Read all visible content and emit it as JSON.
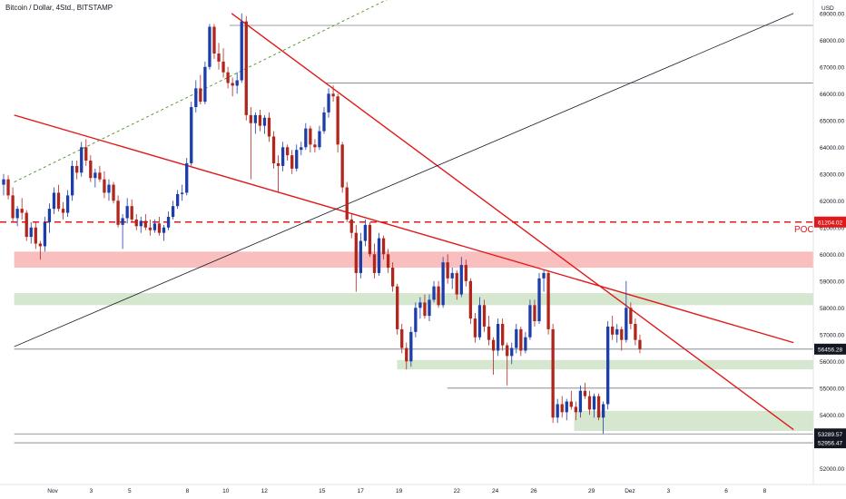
{
  "chart_data": {
    "type": "candlestick",
    "title": "Bitcoin / Dollar, 4Std., BITSTAMP",
    "currency": "USD",
    "ylim": [
      51400,
      69500
    ],
    "y_ticks": [
      52000,
      53000,
      54000,
      55000,
      56000,
      57000,
      58000,
      59000,
      60000,
      61000,
      62000,
      63000,
      64000,
      65000,
      66000,
      67000,
      68000,
      69000
    ],
    "x_ticks": [
      {
        "label": "Nov",
        "day": 1
      },
      {
        "label": "3",
        "day": 3
      },
      {
        "label": "5",
        "day": 5
      },
      {
        "label": "8",
        "day": 8
      },
      {
        "label": "10",
        "day": 10
      },
      {
        "label": "12",
        "day": 12
      },
      {
        "label": "15",
        "day": 15
      },
      {
        "label": "17",
        "day": 17
      },
      {
        "label": "19",
        "day": 19
      },
      {
        "label": "22",
        "day": 22
      },
      {
        "label": "24",
        "day": 24
      },
      {
        "label": "26",
        "day": 26
      },
      {
        "label": "29",
        "day": 29
      },
      {
        "label": "Dez",
        "day": 31
      },
      {
        "label": "3",
        "day": 33
      },
      {
        "label": "6",
        "day": 36
      },
      {
        "label": "8",
        "day": 38
      }
    ],
    "poc": {
      "label": "POC",
      "value": 61204.02,
      "value_label": "61204.02",
      "color": "#e01a1a"
    },
    "price_labels": [
      {
        "value": 56456.28,
        "text": "56456.28"
      },
      {
        "value": 53289.57,
        "text": "53289.57"
      },
      {
        "value": 52956.47,
        "text": "52956.47"
      }
    ],
    "horizontal_levels": [
      {
        "value": 68550,
        "from_day": 10.2
      },
      {
        "value": 66400,
        "from_day": 15.2
      },
      {
        "value": 56456.28,
        "from_day": -1
      },
      {
        "value": 55000,
        "from_day": 21.5
      },
      {
        "value": 53289.57,
        "from_day": -1
      },
      {
        "value": 52956.47,
        "from_day": -1
      }
    ],
    "zones": [
      {
        "low": 59500,
        "high": 60100,
        "from_day": -1,
        "color": "#f7a8a8"
      },
      {
        "low": 58100,
        "high": 58550,
        "from_day": -1,
        "color": "#c8dfc0"
      },
      {
        "low": 55700,
        "high": 56050,
        "from_day": 18.9,
        "color": "#c8dfc0"
      },
      {
        "low": 53400,
        "high": 54150,
        "from_day": 28.1,
        "color": "#c8dfc0"
      }
    ],
    "trendlines": [
      {
        "day1": -1,
        "v1": 65200,
        "day2": 39.5,
        "v2": 56700,
        "color": "#e01a1a",
        "width": 1.4,
        "dash": ""
      },
      {
        "day1": 10.3,
        "v1": 69000,
        "day2": 39.5,
        "v2": 53450,
        "color": "#e01a1a",
        "width": 1.4,
        "dash": ""
      },
      {
        "day1": -1,
        "v1": 56550,
        "day2": 39.5,
        "v2": 69000,
        "color": "#131722",
        "width": 0.8,
        "dash": ""
      },
      {
        "day1": -1,
        "v1": 62700,
        "day2": 22.6,
        "v2": 71000,
        "color": "#4a8f2a",
        "width": 0.9,
        "dash": "3,3"
      }
    ],
    "candles": [
      [
        62600,
        63000,
        62200,
        62800
      ],
      [
        62800,
        62950,
        62050,
        62200
      ],
      [
        62200,
        62500,
        61200,
        61350
      ],
      [
        61350,
        61800,
        61050,
        61700
      ],
      [
        61700,
        62100,
        61300,
        61550
      ],
      [
        61550,
        61650,
        60500,
        60650
      ],
      [
        60650,
        61200,
        60400,
        61000
      ],
      [
        61000,
        61200,
        60200,
        60400
      ],
      [
        60400,
        60500,
        59800,
        60300
      ],
      [
        60300,
        61400,
        60100,
        61200
      ],
      [
        61200,
        61900,
        60800,
        61700
      ],
      [
        61700,
        62500,
        61500,
        62300
      ],
      [
        62300,
        62600,
        61600,
        61700
      ],
      [
        61700,
        61950,
        61300,
        61550
      ],
      [
        61550,
        62400,
        61400,
        62200
      ],
      [
        62200,
        63500,
        62000,
        63300
      ],
      [
        63300,
        63500,
        62800,
        63050
      ],
      [
        63050,
        64200,
        62900,
        64000
      ],
      [
        64000,
        64300,
        63300,
        63500
      ],
      [
        63500,
        63700,
        62700,
        62850
      ],
      [
        62850,
        63200,
        62500,
        63050
      ],
      [
        63050,
        63300,
        62700,
        62800
      ],
      [
        62800,
        63100,
        62100,
        62300
      ],
      [
        62300,
        62800,
        62000,
        62600
      ],
      [
        62600,
        62700,
        61900,
        62000
      ],
      [
        62000,
        62200,
        61000,
        61100
      ],
      [
        61100,
        61500,
        60200,
        61350
      ],
      [
        61350,
        62100,
        61150,
        61800
      ],
      [
        61800,
        62050,
        61200,
        61300
      ],
      [
        61300,
        61500,
        60900,
        61050
      ],
      [
        61050,
        61400,
        60800,
        61250
      ],
      [
        61250,
        61500,
        60900,
        61000
      ],
      [
        61000,
        61300,
        60700,
        60900
      ],
      [
        60900,
        61300,
        60800,
        61150
      ],
      [
        61150,
        61400,
        60700,
        60800
      ],
      [
        60800,
        61100,
        60500,
        61000
      ],
      [
        61000,
        61600,
        60900,
        61400
      ],
      [
        61400,
        62000,
        61300,
        61800
      ],
      [
        61800,
        62400,
        61700,
        62250
      ],
      [
        62250,
        62600,
        62000,
        62300
      ],
      [
        62300,
        63600,
        62200,
        63400
      ],
      [
        63400,
        65700,
        63300,
        65500
      ],
      [
        65500,
        66500,
        65300,
        66200
      ],
      [
        66200,
        66700,
        65600,
        65700
      ],
      [
        65700,
        67200,
        65600,
        67000
      ],
      [
        67000,
        68600,
        66900,
        68500
      ],
      [
        68500,
        68600,
        67300,
        67500
      ],
      [
        67500,
        67900,
        66900,
        67200
      ],
      [
        67200,
        67700,
        66600,
        66800
      ],
      [
        66800,
        67000,
        66200,
        66400
      ],
      [
        66400,
        66600,
        65900,
        66300
      ],
      [
        66300,
        66800,
        66000,
        66500
      ],
      [
        66500,
        69000,
        66400,
        68700
      ],
      [
        68700,
        68900,
        65000,
        65200
      ],
      [
        65200,
        65500,
        62800,
        64900
      ],
      [
        64900,
        65300,
        64500,
        65200
      ],
      [
        65200,
        65400,
        64600,
        64800
      ],
      [
        64800,
        65200,
        64500,
        65100
      ],
      [
        65100,
        65300,
        64200,
        64400
      ],
      [
        64400,
        64600,
        63200,
        63400
      ],
      [
        63400,
        63700,
        62300,
        63300
      ],
      [
        63300,
        64200,
        63100,
        64000
      ],
      [
        64000,
        64100,
        63500,
        63700
      ],
      [
        63700,
        63900,
        63000,
        63200
      ],
      [
        63200,
        64100,
        63100,
        63900
      ],
      [
        63900,
        64200,
        63700,
        64000
      ],
      [
        64000,
        64900,
        63900,
        64700
      ],
      [
        64700,
        64800,
        63800,
        64100
      ],
      [
        64100,
        64300,
        63800,
        64000
      ],
      [
        64000,
        64800,
        63900,
        64600
      ],
      [
        64600,
        65500,
        64500,
        65300
      ],
      [
        65300,
        66200,
        65100,
        66000
      ],
      [
        66000,
        66300,
        65700,
        65900
      ],
      [
        65900,
        66000,
        63800,
        64100
      ],
      [
        64100,
        64200,
        62300,
        62500
      ],
      [
        62500,
        62700,
        61200,
        61300
      ],
      [
        61300,
        61500,
        60600,
        60800
      ],
      [
        60800,
        61100,
        58600,
        59300
      ],
      [
        59300,
        60800,
        59100,
        60500
      ],
      [
        60500,
        61300,
        60300,
        61100
      ],
      [
        61100,
        61200,
        59900,
        60000
      ],
      [
        60000,
        60400,
        59100,
        59300
      ],
      [
        59300,
        60800,
        59200,
        60600
      ],
      [
        60600,
        60700,
        59800,
        60000
      ],
      [
        60000,
        60200,
        59300,
        59500
      ],
      [
        59500,
        59700,
        58600,
        58800
      ],
      [
        58800,
        58900,
        57000,
        57200
      ],
      [
        57200,
        57400,
        56300,
        56500
      ],
      [
        56500,
        56700,
        55700,
        56000
      ],
      [
        56000,
        57300,
        55800,
        57100
      ],
      [
        57100,
        58200,
        56900,
        58000
      ],
      [
        58000,
        58400,
        57600,
        58200
      ],
      [
        58200,
        58500,
        57600,
        57700
      ],
      [
        57700,
        58500,
        57500,
        58300
      ],
      [
        58300,
        59000,
        58200,
        58800
      ],
      [
        58800,
        59000,
        58000,
        58100
      ],
      [
        58100,
        59900,
        58000,
        59700
      ],
      [
        59700,
        60000,
        58900,
        59100
      ],
      [
        59100,
        59500,
        58700,
        59300
      ],
      [
        59300,
        59400,
        58300,
        58500
      ],
      [
        58500,
        59900,
        58400,
        59600
      ],
      [
        59600,
        59800,
        58800,
        59000
      ],
      [
        59000,
        59100,
        57400,
        57600
      ],
      [
        57600,
        57800,
        56700,
        56900
      ],
      [
        56900,
        58400,
        56800,
        58100
      ],
      [
        58100,
        58300,
        57100,
        57300
      ],
      [
        57300,
        57700,
        56600,
        56800
      ],
      [
        56800,
        56900,
        55500,
        56400
      ],
      [
        56400,
        57600,
        56200,
        57400
      ],
      [
        57400,
        57600,
        56400,
        56600
      ],
      [
        56600,
        56700,
        55100,
        56200
      ],
      [
        56200,
        56700,
        55900,
        56500
      ],
      [
        56500,
        57400,
        56300,
        57200
      ],
      [
        57200,
        57300,
        56200,
        56400
      ],
      [
        56400,
        57100,
        56300,
        56900
      ],
      [
        56900,
        58300,
        56800,
        58100
      ],
      [
        58100,
        58300,
        57300,
        57500
      ],
      [
        57500,
        59300,
        57400,
        59100
      ],
      [
        59100,
        59400,
        58600,
        59300
      ],
      [
        59300,
        59400,
        57000,
        57200
      ],
      [
        57200,
        57400,
        53700,
        53900
      ],
      [
        53900,
        54600,
        53700,
        54400
      ],
      [
        54400,
        54700,
        53900,
        54100
      ],
      [
        54100,
        54600,
        53800,
        54500
      ],
      [
        54500,
        54900,
        54200,
        54300
      ],
      [
        54300,
        54500,
        53800,
        54100
      ],
      [
        54100,
        55100,
        53900,
        54900
      ],
      [
        54900,
        55200,
        54600,
        54700
      ],
      [
        54700,
        54900,
        54000,
        54200
      ],
      [
        54200,
        54800,
        53900,
        54700
      ],
      [
        54700,
        54800,
        53800,
        53900
      ],
      [
        53900,
        54500,
        53300,
        54400
      ],
      [
        54400,
        57500,
        54200,
        57300
      ],
      [
        57300,
        57700,
        56800,
        57000
      ],
      [
        57000,
        57400,
        56700,
        57200
      ],
      [
        57200,
        57300,
        56400,
        56800
      ],
      [
        56800,
        59000,
        56700,
        58000
      ],
      [
        58000,
        58200,
        57200,
        57400
      ],
      [
        57400,
        57600,
        56600,
        56800
      ],
      [
        56800,
        57000,
        56300,
        56456
      ]
    ]
  }
}
